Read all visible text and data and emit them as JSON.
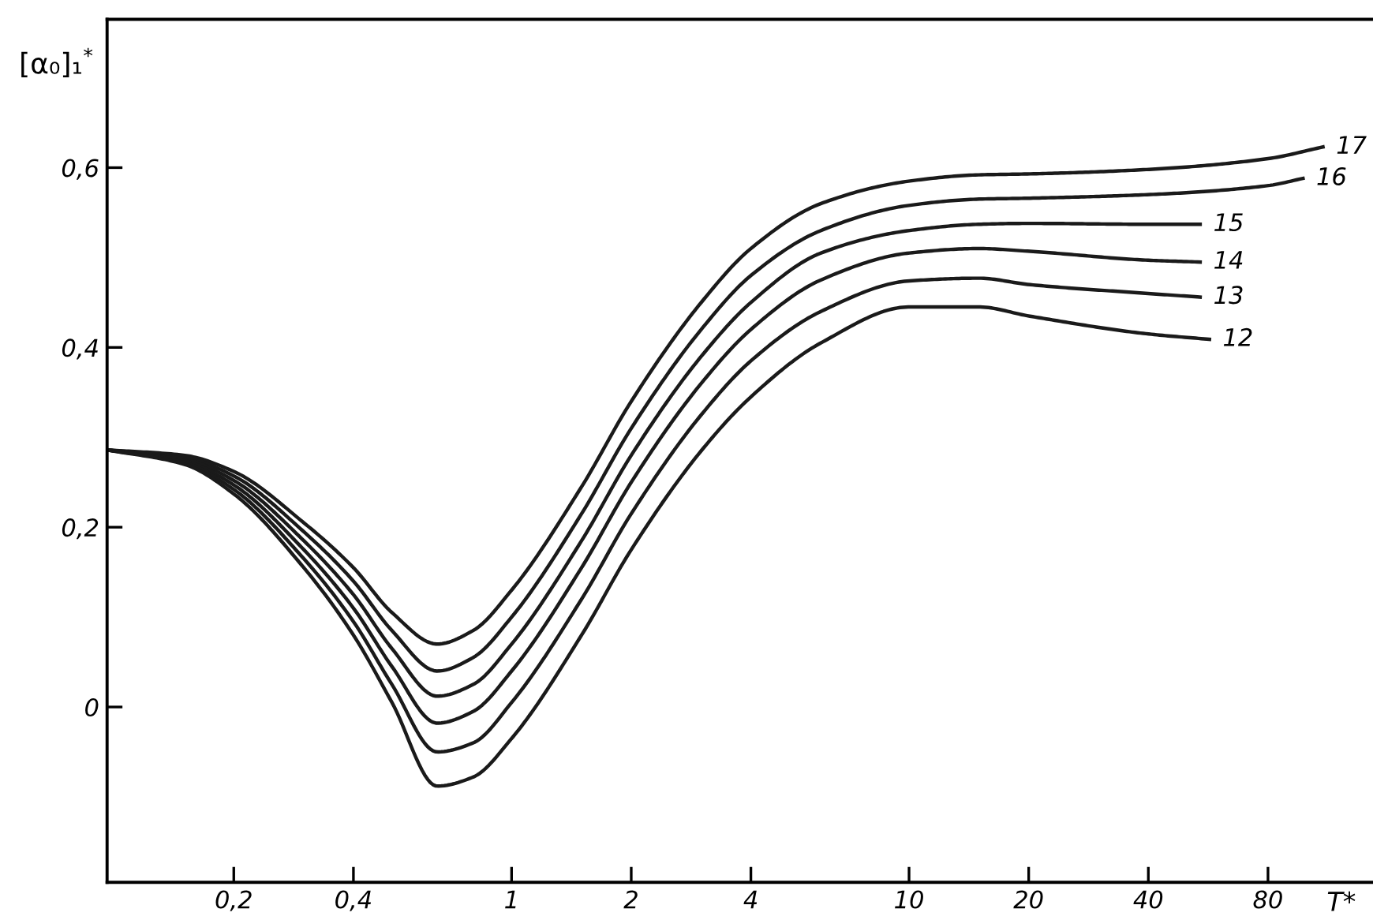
{
  "chart_data": {
    "type": "line",
    "xlabel": "T*",
    "ylabel": "[α₀]₁$^{*}$",
    "log": "x",
    "xlim": [
      0.096,
      147
    ],
    "ylim": [
      -0.195,
      0.765
    ],
    "xticks": [
      {
        "value": 0.2,
        "label": "0,2"
      },
      {
        "value": 0.4,
        "label": "0,4"
      },
      1,
      2,
      4,
      10,
      20,
      40,
      80
    ],
    "yticks": [
      0,
      {
        "value": 0.2,
        "label": "0,2"
      },
      {
        "value": 0.4,
        "label": "0,4"
      },
      {
        "value": 0.6,
        "label": "0,6"
      }
    ],
    "grid": false,
    "legend": false,
    "marker": "none",
    "line_style": "solid",
    "series": [
      {
        "name": "17",
        "color": "#1a1a1a",
        "x": [
          0.096,
          0.15,
          0.2,
          0.3,
          0.4,
          0.5,
          0.65,
          0.8,
          1,
          1.5,
          2,
          3,
          4,
          6,
          10,
          15,
          20,
          40,
          80,
          110
        ],
        "values": [
          0.286,
          0.28,
          0.262,
          0.205,
          0.155,
          0.105,
          0.07,
          0.085,
          0.13,
          0.245,
          0.34,
          0.45,
          0.51,
          0.56,
          0.585,
          0.592,
          0.593,
          0.598,
          0.61,
          0.623
        ]
      },
      {
        "name": "16",
        "color": "#1a1a1a",
        "x": [
          0.096,
          0.15,
          0.2,
          0.3,
          0.4,
          0.5,
          0.65,
          0.8,
          1,
          1.5,
          2,
          3,
          4,
          6,
          10,
          15,
          20,
          40,
          80,
          98
        ],
        "values": [
          0.286,
          0.278,
          0.257,
          0.195,
          0.14,
          0.085,
          0.04,
          0.055,
          0.1,
          0.215,
          0.31,
          0.42,
          0.48,
          0.53,
          0.558,
          0.565,
          0.566,
          0.57,
          0.58,
          0.588
        ]
      },
      {
        "name": "15",
        "color": "#1a1a1a",
        "x": [
          0.096,
          0.15,
          0.2,
          0.3,
          0.4,
          0.5,
          0.65,
          0.8,
          1,
          1.5,
          2,
          3,
          4,
          6,
          10,
          15,
          20,
          40,
          54
        ],
        "values": [
          0.286,
          0.276,
          0.252,
          0.185,
          0.125,
          0.065,
          0.012,
          0.025,
          0.07,
          0.185,
          0.28,
          0.39,
          0.45,
          0.505,
          0.53,
          0.537,
          0.538,
          0.537,
          0.537
        ]
      },
      {
        "name": "14",
        "color": "#1a1a1a",
        "x": [
          0.096,
          0.15,
          0.2,
          0.3,
          0.4,
          0.5,
          0.65,
          0.8,
          1,
          1.5,
          2,
          3,
          4,
          6,
          10,
          15,
          20,
          40,
          54
        ],
        "values": [
          0.286,
          0.274,
          0.247,
          0.175,
          0.11,
          0.045,
          -0.018,
          -0.005,
          0.04,
          0.155,
          0.25,
          0.36,
          0.42,
          0.475,
          0.505,
          0.51,
          0.507,
          0.497,
          0.495
        ]
      },
      {
        "name": "13",
        "color": "#1a1a1a",
        "x": [
          0.096,
          0.15,
          0.2,
          0.3,
          0.4,
          0.5,
          0.65,
          0.8,
          1,
          1.5,
          2,
          3,
          4,
          6,
          10,
          15,
          20,
          40,
          54
        ],
        "values": [
          0.286,
          0.272,
          0.242,
          0.165,
          0.095,
          0.025,
          -0.05,
          -0.04,
          0.005,
          0.12,
          0.215,
          0.325,
          0.385,
          0.44,
          0.474,
          0.477,
          0.47,
          0.46,
          0.456
        ]
      },
      {
        "name": "12",
        "color": "#1a1a1a",
        "x": [
          0.096,
          0.15,
          0.2,
          0.3,
          0.4,
          0.5,
          0.65,
          0.8,
          1,
          1.5,
          2,
          3,
          4,
          6,
          10,
          15,
          20,
          40,
          57
        ],
        "values": [
          0.286,
          0.27,
          0.237,
          0.155,
          0.08,
          0.005,
          -0.088,
          -0.078,
          -0.035,
          0.08,
          0.175,
          0.285,
          0.345,
          0.405,
          0.445,
          0.445,
          0.435,
          0.415,
          0.409
        ]
      }
    ]
  }
}
